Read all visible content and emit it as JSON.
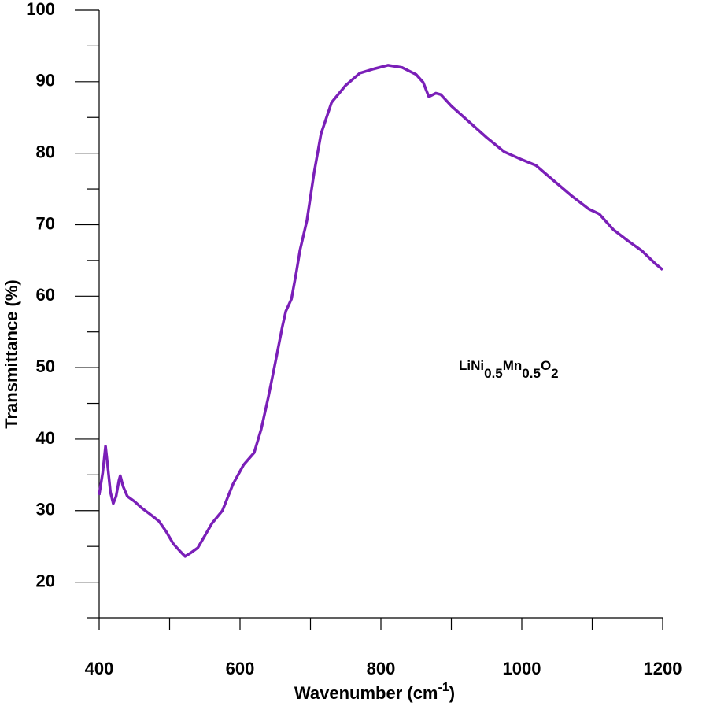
{
  "chart_data": {
    "type": "line",
    "ylabel": "Transmittance (%)",
    "xlabel": [
      {
        "text": "Wavenumber (cm"
      },
      {
        "text": "-1",
        "sup": true
      },
      {
        "text": ")"
      }
    ],
    "annotation": [
      {
        "text": "LiNi"
      },
      {
        "text": "0.5",
        "sub": true
      },
      {
        "text": "Mn"
      },
      {
        "text": "0.5",
        "sub": true
      },
      {
        "text": "O"
      },
      {
        "text": "2",
        "sub": true
      }
    ],
    "annotation_at": [
      1000,
      49
    ],
    "xlim": [
      400,
      1200
    ],
    "ylim": [
      15,
      100
    ],
    "xticks": [
      400,
      600,
      800,
      1000,
      1200
    ],
    "xminorticks": [
      500,
      700,
      900,
      1100
    ],
    "yticks": [
      20,
      30,
      40,
      50,
      60,
      70,
      80,
      90,
      100
    ],
    "yminorticks": [
      15,
      25,
      35,
      45,
      55,
      65,
      75,
      85,
      95
    ],
    "series": [
      {
        "color": "#7a1fb8",
        "x": [
          400,
          405,
          409,
          412,
          416,
          420,
          424,
          428,
          430,
          434,
          440,
          450,
          460,
          475,
          485,
          495,
          505,
          515,
          522,
          530,
          540,
          550,
          560,
          575,
          590,
          605,
          620,
          630,
          640,
          650,
          660,
          665,
          673,
          680,
          685,
          695,
          705,
          715,
          730,
          750,
          770,
          790,
          810,
          830,
          850,
          860,
          868,
          878,
          885,
          900,
          925,
          950,
          975,
          1000,
          1020,
          1040,
          1070,
          1095,
          1110,
          1130,
          1150,
          1170,
          1190,
          1200
        ],
        "values": [
          32.2,
          35.3,
          39,
          36.4,
          32.6,
          31,
          32,
          34.2,
          34.9,
          33.4,
          32,
          31.3,
          30.4,
          29.3,
          28.5,
          27.1,
          25.4,
          24.3,
          23.6,
          24.1,
          24.8,
          26.5,
          28.2,
          30,
          33.7,
          36.4,
          38.1,
          41.4,
          45.8,
          50.7,
          55.7,
          57.9,
          59.6,
          63.4,
          66.4,
          70.6,
          77.2,
          82.7,
          87.1,
          89.5,
          91.2,
          91.8,
          92.3,
          92,
          91,
          89.9,
          87.9,
          88.4,
          88.2,
          86.6,
          84.4,
          82.2,
          80.2,
          79.1,
          78.3,
          76.6,
          74.1,
          72.2,
          71.5,
          69.3,
          67.8,
          66.4,
          64.5,
          63.7
        ]
      }
    ]
  }
}
